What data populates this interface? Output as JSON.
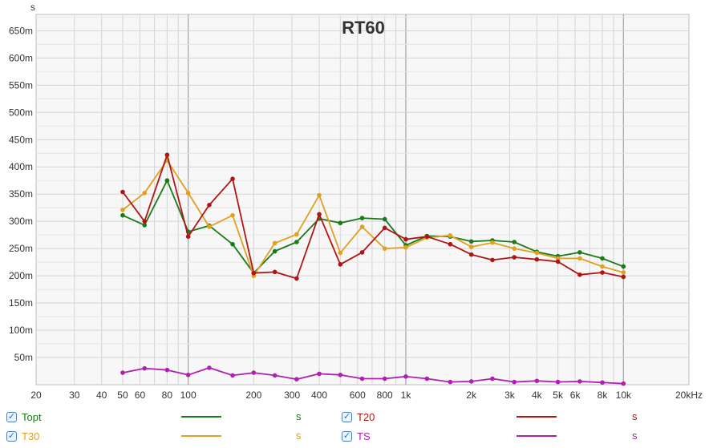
{
  "chart_data": {
    "type": "line",
    "title": "RT60",
    "ylabel": "s",
    "xlabel": "",
    "x_scale": "log",
    "xlim": [
      20,
      20000
    ],
    "ylim": [
      0,
      0.68
    ],
    "grid": true,
    "x_ticks": [
      {
        "v": 20,
        "label": "20"
      },
      {
        "v": 30,
        "label": "30"
      },
      {
        "v": 40,
        "label": "40"
      },
      {
        "v": 50,
        "label": "50"
      },
      {
        "v": 60,
        "label": "60"
      },
      {
        "v": 80,
        "label": "80"
      },
      {
        "v": 100,
        "label": "100"
      },
      {
        "v": 200,
        "label": "200"
      },
      {
        "v": 300,
        "label": "300"
      },
      {
        "v": 400,
        "label": "400"
      },
      {
        "v": 600,
        "label": "600"
      },
      {
        "v": 800,
        "label": "800"
      },
      {
        "v": 1000,
        "label": "1k"
      },
      {
        "v": 2000,
        "label": "2k"
      },
      {
        "v": 3000,
        "label": "3k"
      },
      {
        "v": 4000,
        "label": "4k"
      },
      {
        "v": 5000,
        "label": "5k"
      },
      {
        "v": 6000,
        "label": "6k"
      },
      {
        "v": 8000,
        "label": "8k"
      },
      {
        "v": 10000,
        "label": "10k"
      },
      {
        "v": 20000,
        "label": "20kHz"
      }
    ],
    "y_ticks": [
      {
        "v": 0.05,
        "label": "50m"
      },
      {
        "v": 0.1,
        "label": "100m"
      },
      {
        "v": 0.15,
        "label": "150m"
      },
      {
        "v": 0.2,
        "label": "200m"
      },
      {
        "v": 0.25,
        "label": "250m"
      },
      {
        "v": 0.3,
        "label": "300m"
      },
      {
        "v": 0.35,
        "label": "350m"
      },
      {
        "v": 0.4,
        "label": "400m"
      },
      {
        "v": 0.45,
        "label": "450m"
      },
      {
        "v": 0.5,
        "label": "500m"
      },
      {
        "v": 0.55,
        "label": "550m"
      },
      {
        "v": 0.6,
        "label": "600m"
      },
      {
        "v": 0.65,
        "label": "650m"
      }
    ],
    "x": [
      50,
      63,
      80,
      100,
      125,
      160,
      200,
      250,
      315,
      400,
      500,
      630,
      800,
      1000,
      1250,
      1600,
      2000,
      2500,
      3150,
      4000,
      5000,
      6300,
      8000,
      10000
    ],
    "series": [
      {
        "name": "Topt",
        "color": "#1a7a1a",
        "values": [
          0.311,
          0.293,
          0.375,
          0.281,
          0.292,
          0.258,
          0.205,
          0.245,
          0.262,
          0.305,
          0.297,
          0.306,
          0.304,
          0.256,
          0.273,
          0.272,
          0.263,
          0.265,
          0.262,
          0.244,
          0.236,
          0.243,
          0.232,
          0.217
        ]
      },
      {
        "name": "T20",
        "color": "#b01515",
        "values": [
          0.354,
          0.3,
          0.422,
          0.272,
          0.33,
          0.378,
          0.205,
          0.207,
          0.195,
          0.313,
          0.221,
          0.243,
          0.288,
          0.267,
          0.272,
          0.258,
          0.239,
          0.229,
          0.234,
          0.23,
          0.226,
          0.202,
          0.206,
          0.198
        ]
      },
      {
        "name": "T30",
        "color": "#e0a020",
        "values": [
          0.321,
          0.352,
          0.412,
          0.352,
          0.29,
          0.311,
          0.2,
          0.26,
          0.276,
          0.348,
          0.242,
          0.29,
          0.25,
          0.252,
          0.27,
          0.274,
          0.253,
          0.261,
          0.25,
          0.242,
          0.232,
          0.232,
          0.217,
          0.206
        ]
      },
      {
        "name": "TS",
        "color": "#b020b0",
        "values": [
          0.022,
          0.03,
          0.027,
          0.018,
          0.031,
          0.017,
          0.022,
          0.017,
          0.01,
          0.02,
          0.018,
          0.011,
          0.011,
          0.015,
          0.011,
          0.005,
          0.006,
          0.011,
          0.005,
          0.007,
          0.005,
          0.006,
          0.004,
          0.002
        ]
      }
    ]
  },
  "legend": {
    "items": [
      {
        "name": "Topt",
        "unit": "s",
        "color": "#1a7a1a",
        "checked": true
      },
      {
        "name": "T20",
        "unit": "s",
        "color": "#b01515",
        "checked": true
      },
      {
        "name": "T30",
        "unit": "s",
        "color": "#e0a020",
        "checked": true
      },
      {
        "name": "TS",
        "unit": "s",
        "color": "#b020b0",
        "checked": true
      }
    ],
    "check_glyph": "✓"
  }
}
